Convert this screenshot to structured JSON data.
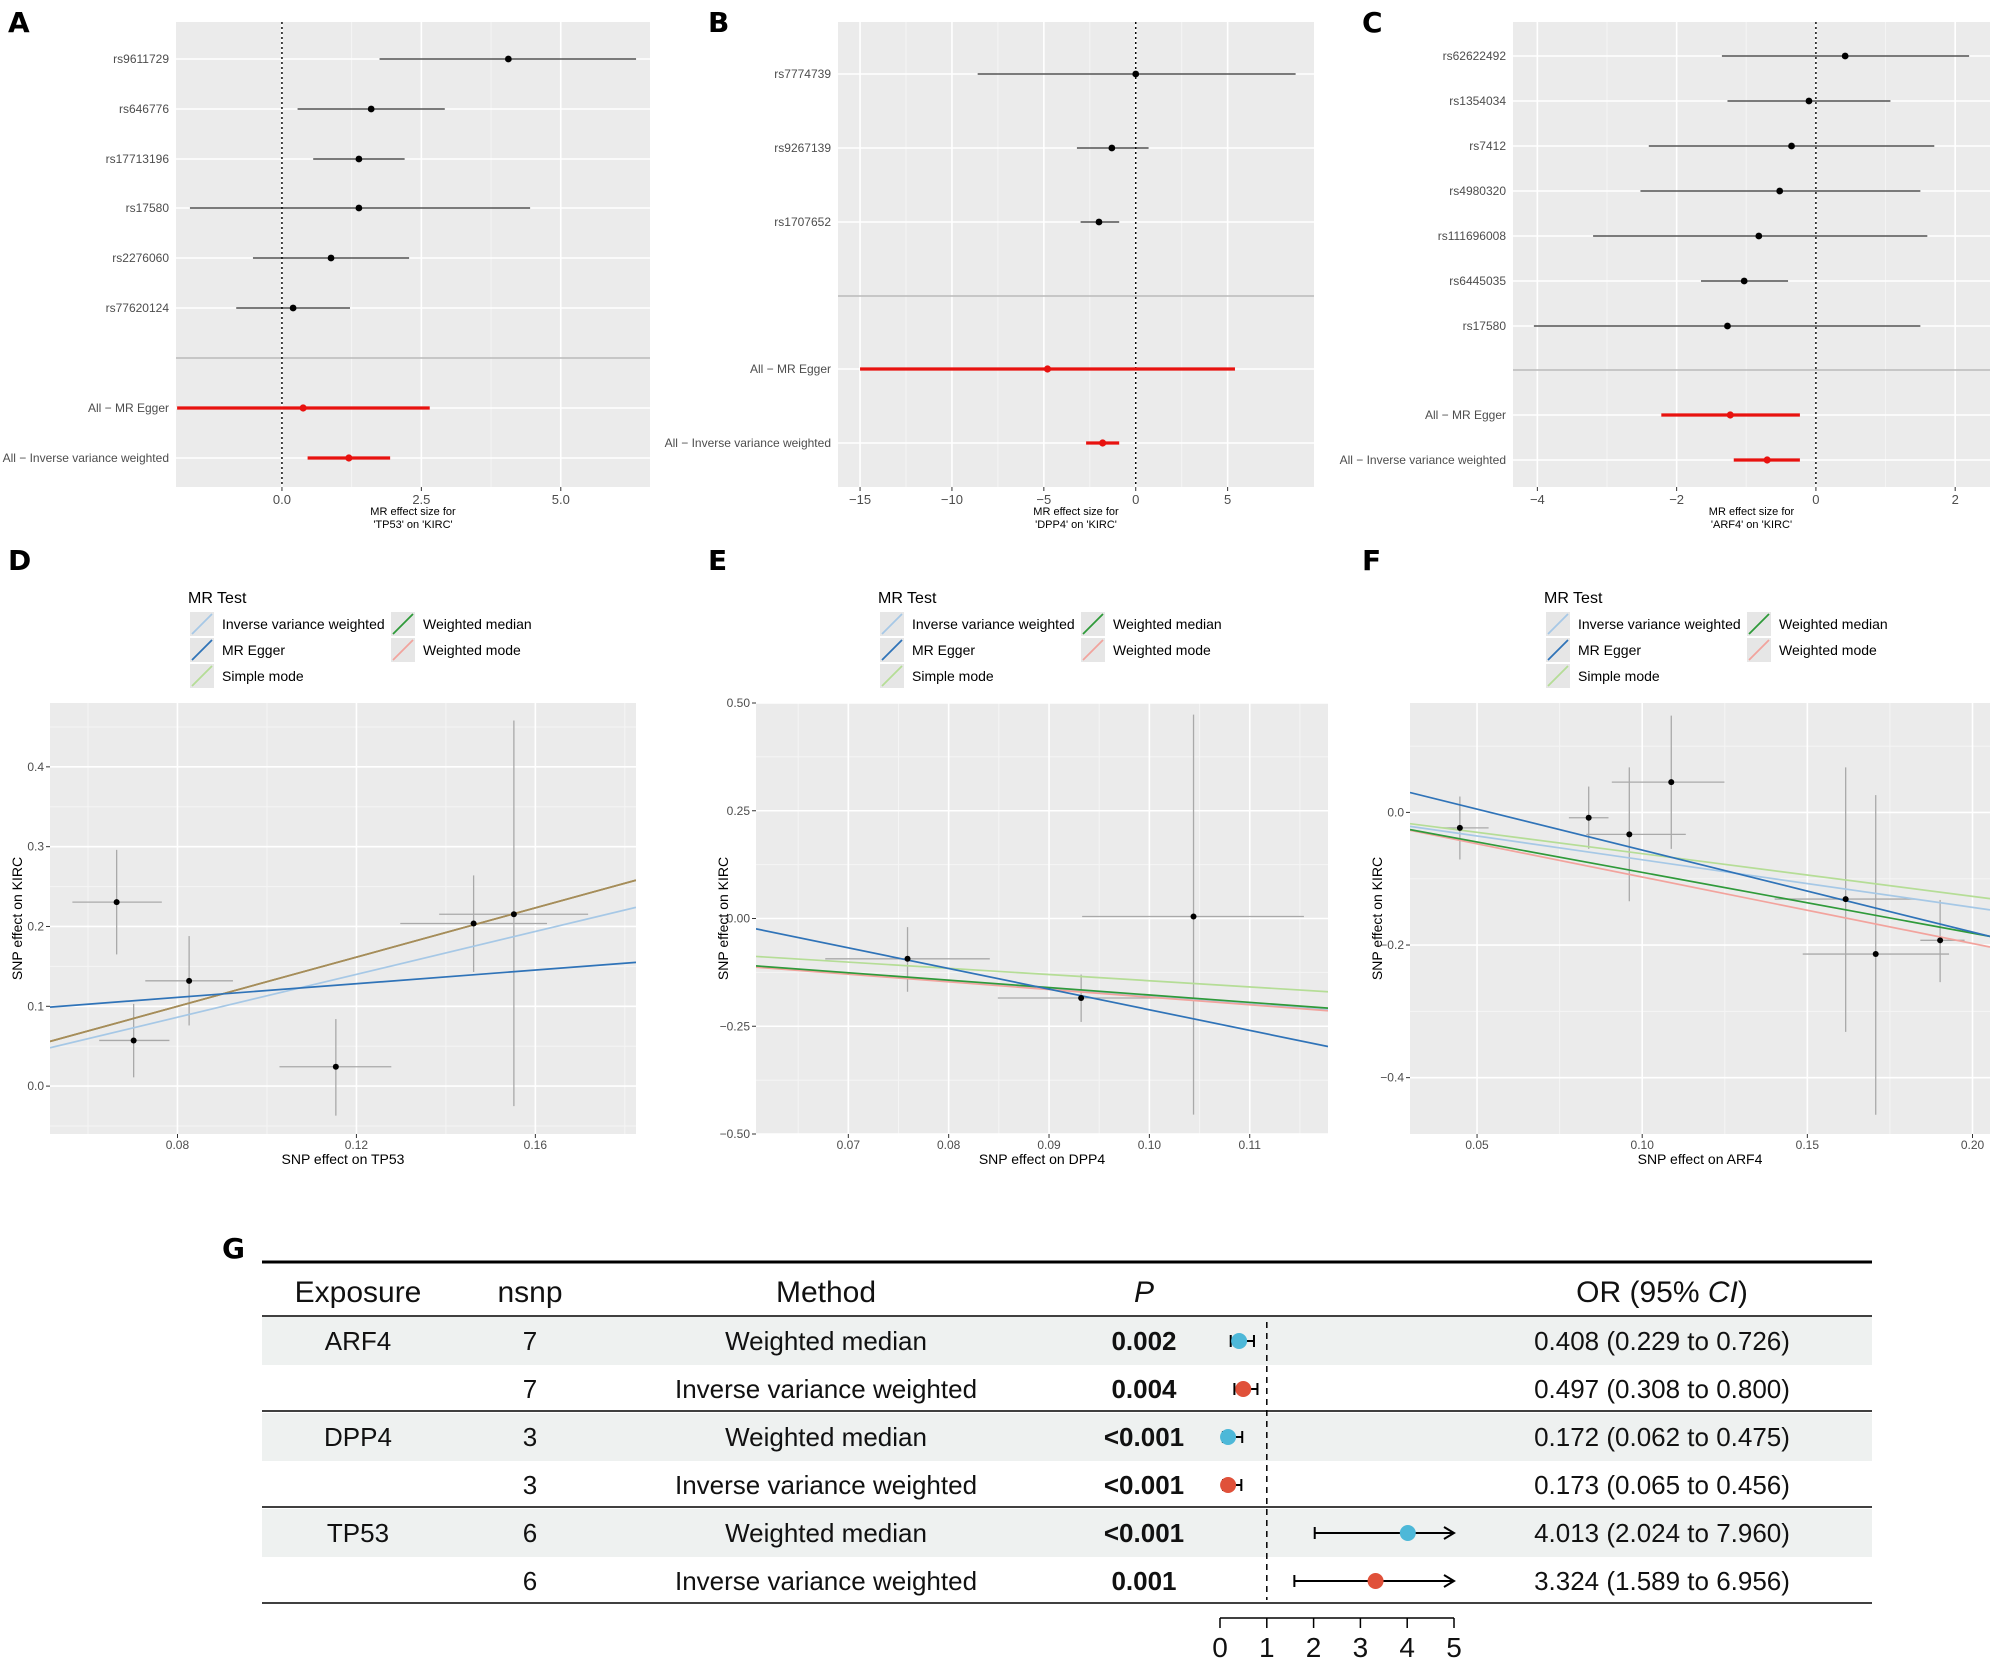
{
  "panel_labels": {
    "A": "A",
    "B": "B",
    "C": "C",
    "D": "D",
    "E": "E",
    "F": "F",
    "G": "G"
  },
  "chart_data": [
    {
      "id": "A",
      "type": "forest",
      "xlabel_lines": [
        "MR effect size for",
        "'TP53' on 'KIRC'"
      ],
      "xlim": [
        -1.9,
        6.6
      ],
      "xticks": [
        0,
        2.5,
        5
      ],
      "xtick_labels": [
        "0.0",
        "2.5",
        "5.0"
      ],
      "separator_after": 6,
      "rows": [
        {
          "label": "rs9611729",
          "est": 4.06,
          "lo": 1.75,
          "hi": 6.35,
          "summary": false
        },
        {
          "label": "rs646776",
          "est": 1.6,
          "lo": 0.28,
          "hi": 2.92,
          "summary": false
        },
        {
          "label": "rs17713196",
          "est": 1.38,
          "lo": 0.56,
          "hi": 2.2,
          "summary": false
        },
        {
          "label": "rs17580",
          "est": 1.38,
          "lo": -1.65,
          "hi": 4.45,
          "summary": false
        },
        {
          "label": "rs2276060",
          "est": 0.88,
          "lo": -0.52,
          "hi": 2.28,
          "summary": false
        },
        {
          "label": "rs77620124",
          "est": 0.2,
          "lo": -0.82,
          "hi": 1.22,
          "summary": false
        },
        {
          "label": "All − MR Egger",
          "est": 0.38,
          "lo": -1.88,
          "hi": 2.65,
          "summary": true
        },
        {
          "label": "All − Inverse variance weighted",
          "est": 1.2,
          "lo": 0.46,
          "hi": 1.94,
          "summary": true
        }
      ]
    },
    {
      "id": "B",
      "type": "forest",
      "xlabel_lines": [
        "MR effect size for",
        "'DPP4' on 'KIRC'"
      ],
      "xlim": [
        -16.2,
        9.7
      ],
      "xticks": [
        -15,
        -10,
        -5,
        0,
        5
      ],
      "xtick_labels": [
        "−15",
        "−10",
        "−5",
        "0",
        "5"
      ],
      "separator_after": 3,
      "rows": [
        {
          "label": "rs7774739",
          "est": 0.0,
          "lo": -8.6,
          "hi": 8.7,
          "summary": false
        },
        {
          "label": "rs9267139",
          "est": -1.3,
          "lo": -3.2,
          "hi": 0.7,
          "summary": false
        },
        {
          "label": "rs1707652",
          "est": -2.0,
          "lo": -3.0,
          "hi": -0.9,
          "summary": false
        },
        {
          "label": "All − MR Egger",
          "est": -4.8,
          "lo": -15.0,
          "hi": 5.4,
          "summary": true
        },
        {
          "label": "All − Inverse variance weighted",
          "est": -1.8,
          "lo": -2.7,
          "hi": -0.9,
          "summary": true
        }
      ]
    },
    {
      "id": "C",
      "type": "forest",
      "xlabel_lines": [
        "MR effect size for",
        "'ARF4' on 'KIRC'"
      ],
      "xlim": [
        -4.35,
        2.5
      ],
      "xticks": [
        -4,
        -2,
        0,
        2
      ],
      "xtick_labels": [
        "−4",
        "−2",
        "0",
        "2"
      ],
      "separator_after": 7,
      "rows": [
        {
          "label": "rs62622492",
          "est": 0.42,
          "lo": -1.35,
          "hi": 2.2,
          "summary": false
        },
        {
          "label": "rs1354034",
          "est": -0.1,
          "lo": -1.27,
          "hi": 1.07,
          "summary": false
        },
        {
          "label": "rs7412",
          "est": -0.35,
          "lo": -2.4,
          "hi": 1.7,
          "summary": false
        },
        {
          "label": "rs4980320",
          "est": -0.52,
          "lo": -2.52,
          "hi": 1.5,
          "summary": false
        },
        {
          "label": "rs111696008",
          "est": -0.82,
          "lo": -3.2,
          "hi": 1.6,
          "summary": false
        },
        {
          "label": "rs6445035",
          "est": -1.03,
          "lo": -1.65,
          "hi": -0.4,
          "summary": false
        },
        {
          "label": "rs17580",
          "est": -1.27,
          "lo": -4.05,
          "hi": 1.5,
          "summary": false
        },
        {
          "label": "All − MR Egger",
          "est": -1.23,
          "lo": -2.22,
          "hi": -0.23,
          "summary": true
        },
        {
          "label": "All − Inverse variance weighted",
          "est": -0.7,
          "lo": -1.18,
          "hi": -0.23,
          "summary": true
        }
      ]
    },
    {
      "id": "D",
      "type": "scatter",
      "xlabel": "SNP effect on TP53",
      "ylabel": "SNP effect on KIRC",
      "xlim": [
        0.0515,
        0.1825
      ],
      "ylim": [
        -0.06,
        0.48
      ],
      "xticks": [
        0.08,
        0.12,
        0.16
      ],
      "xtick_labels": [
        "0.08",
        "0.12",
        "0.16"
      ],
      "yticks": [
        0,
        0.1,
        0.2,
        0.3,
        0.4
      ],
      "ytick_labels": [
        "0.0",
        "0.1",
        "0.2",
        "0.3",
        "0.4"
      ],
      "points": [
        {
          "x": 0.0664,
          "y": 0.2305,
          "xlo": 0.0565,
          "xhi": 0.0765,
          "ylo": 0.165,
          "yhi": 0.296
        },
        {
          "x": 0.0702,
          "y": 0.0572,
          "xlo": 0.0625,
          "xhi": 0.0782,
          "ylo": 0.011,
          "yhi": 0.103
        },
        {
          "x": 0.0826,
          "y": 0.1319,
          "xlo": 0.0728,
          "xhi": 0.0924,
          "ylo": 0.076,
          "yhi": 0.188
        },
        {
          "x": 0.1154,
          "y": 0.0243,
          "xlo": 0.1028,
          "xhi": 0.1278,
          "ylo": -0.037,
          "yhi": 0.084
        },
        {
          "x": 0.1462,
          "y": 0.2037,
          "xlo": 0.1298,
          "xhi": 0.1626,
          "ylo": 0.143,
          "yhi": 0.264
        },
        {
          "x": 0.1552,
          "y": 0.2153,
          "xlo": 0.1385,
          "xhi": 0.1718,
          "ylo": -0.025,
          "yhi": 0.458
        }
      ],
      "lines": [
        {
          "method": "Inverse variance weighted",
          "x0": 0.0515,
          "y0": 0.048,
          "x1": 0.1825,
          "y1": 0.224
        },
        {
          "method": "MR Egger",
          "x0": 0.0515,
          "y0": 0.099,
          "x1": 0.1825,
          "y1": 0.155
        },
        {
          "method": "Simple mode",
          "x0": 0.0515,
          "y0": 0.056,
          "x1": 0.1825,
          "y1": 0.258
        },
        {
          "method": "Weighted median",
          "x0": 0.0515,
          "y0": 0.056,
          "x1": 0.1825,
          "y1": 0.258
        },
        {
          "method": "Weighted mode",
          "x0": 0.0515,
          "y0": 0.056,
          "x1": 0.1825,
          "y1": 0.258
        }
      ]
    },
    {
      "id": "E",
      "type": "scatter",
      "xlabel": "SNP effect on DPP4",
      "ylabel": "SNP effect on KIRC",
      "xlim": [
        0.0608,
        0.1178
      ],
      "ylim": [
        -0.5,
        0.5
      ],
      "xticks": [
        0.07,
        0.08,
        0.09,
        0.1,
        0.11
      ],
      "xtick_labels": [
        "0.07",
        "0.08",
        "0.09",
        "0.10",
        "0.11"
      ],
      "yticks": [
        -0.5,
        -0.25,
        0,
        0.25,
        0.5
      ],
      "ytick_labels": [
        "−0.50",
        "−0.25",
        "0.00",
        "0.25",
        "0.50"
      ],
      "points": [
        {
          "x": 0.0759,
          "y": -0.0935,
          "xlo": 0.0677,
          "xhi": 0.0841,
          "ylo": -0.17,
          "yhi": -0.02
        },
        {
          "x": 0.0932,
          "y": -0.1845,
          "xlo": 0.0849,
          "xhi": 0.1016,
          "ylo": -0.24,
          "yhi": -0.13
        },
        {
          "x": 0.1044,
          "y": 0.0047,
          "xlo": 0.0933,
          "xhi": 0.1154,
          "ylo": -0.455,
          "yhi": 0.473
        }
      ],
      "lines": [
        {
          "method": "Inverse variance weighted",
          "x0": 0.0608,
          "y0": -0.112,
          "x1": 0.1178,
          "y1": -0.212
        },
        {
          "method": "MR Egger",
          "x0": 0.0608,
          "y0": -0.024,
          "x1": 0.1178,
          "y1": -0.297
        },
        {
          "method": "Simple mode",
          "x0": 0.0608,
          "y0": -0.088,
          "x1": 0.1178,
          "y1": -0.17
        },
        {
          "method": "Weighted median",
          "x0": 0.0608,
          "y0": -0.11,
          "x1": 0.1178,
          "y1": -0.208
        },
        {
          "method": "Weighted mode",
          "x0": 0.0608,
          "y0": -0.113,
          "x1": 0.1178,
          "y1": -0.214
        }
      ]
    },
    {
      "id": "F",
      "type": "scatter",
      "xlabel": "SNP effect on ARF4",
      "ylabel": "SNP effect on KIRC",
      "xlim": [
        0.0297,
        0.2053
      ],
      "ylim": [
        -0.485,
        0.165
      ],
      "xticks": [
        0.05,
        0.1,
        0.15,
        0.2
      ],
      "xtick_labels": [
        "0.05",
        "0.10",
        "0.15",
        "0.20"
      ],
      "yticks": [
        -0.4,
        -0.2,
        0
      ],
      "ytick_labels": [
        "−0.4",
        "−0.2",
        "0.0"
      ],
      "points": [
        {
          "x": 0.0448,
          "y": -0.0233,
          "xlo": 0.0395,
          "xhi": 0.0535,
          "ylo": -0.071,
          "yhi": 0.024
        },
        {
          "x": 0.0838,
          "y": -0.0081,
          "xlo": 0.0778,
          "xhi": 0.0898,
          "ylo": -0.055,
          "yhi": 0.039
        },
        {
          "x": 0.0961,
          "y": -0.0331,
          "xlo": 0.0831,
          "xhi": 0.1132,
          "ylo": -0.134,
          "yhi": 0.068
        },
        {
          "x": 0.1088,
          "y": 0.0457,
          "xlo": 0.0908,
          "xhi": 0.1249,
          "ylo": -0.055,
          "yhi": 0.146
        },
        {
          "x": 0.1616,
          "y": -0.1307,
          "xlo": 0.1401,
          "xhi": 0.1825,
          "ylo": -0.331,
          "yhi": 0.068
        },
        {
          "x": 0.1707,
          "y": -0.2136,
          "xlo": 0.1486,
          "xhi": 0.1929,
          "ylo": -0.456,
          "yhi": 0.026
        },
        {
          "x": 0.1902,
          "y": -0.1929,
          "xlo": 0.1842,
          "xhi": 0.1976,
          "ylo": -0.256,
          "yhi": -0.132
        }
      ],
      "lines": [
        {
          "method": "Inverse variance weighted",
          "x0": 0.0297,
          "y0": -0.021,
          "x1": 0.2053,
          "y1": -0.147
        },
        {
          "method": "MR Egger",
          "x0": 0.0297,
          "y0": 0.03,
          "x1": 0.2053,
          "y1": -0.187
        },
        {
          "method": "Simple mode",
          "x0": 0.0297,
          "y0": -0.017,
          "x1": 0.2053,
          "y1": -0.13
        },
        {
          "method": "Weighted median",
          "x0": 0.0297,
          "y0": -0.026,
          "x1": 0.2053,
          "y1": -0.187
        },
        {
          "method": "Weighted mode",
          "x0": 0.0297,
          "y0": -0.027,
          "x1": 0.2053,
          "y1": -0.203
        }
      ]
    },
    {
      "id": "G",
      "type": "table",
      "columns": {
        "exposure": "Exposure",
        "nsnp": "nsnp",
        "method": "Method",
        "p": "P",
        "or": "OR (95% ",
        "ci": "CI",
        ")": ")"
      },
      "xticks": [
        0,
        1,
        2,
        3,
        4,
        5
      ],
      "ref_line": 1,
      "rows": [
        {
          "exposure": "ARF4",
          "nsnp": "7",
          "method": "Weighted median",
          "p": "0.002",
          "or_text": "0.408 (0.229 to 0.726)",
          "est": 0.408,
          "lo": 0.229,
          "hi": 0.726,
          "shade": true,
          "group_start": true,
          "color": "#4db8d8"
        },
        {
          "exposure": "",
          "nsnp": "7",
          "method": "Inverse variance weighted",
          "p": "0.004",
          "or_text": "0.497 (0.308 to 0.800)",
          "est": 0.497,
          "lo": 0.308,
          "hi": 0.8,
          "shade": false,
          "group_start": false,
          "color": "#e0513a"
        },
        {
          "exposure": "DPP4",
          "nsnp": "3",
          "method": "Weighted median",
          "p": "<0.001",
          "or_text": "0.172 (0.062 to 0.475)",
          "est": 0.172,
          "lo": 0.062,
          "hi": 0.475,
          "shade": true,
          "group_start": true,
          "color": "#4db8d8"
        },
        {
          "exposure": "",
          "nsnp": "3",
          "method": "Inverse variance weighted",
          "p": "<0.001",
          "or_text": "0.173 (0.065 to 0.456)",
          "est": 0.173,
          "lo": 0.065,
          "hi": 0.456,
          "shade": false,
          "group_start": false,
          "color": "#e0513a"
        },
        {
          "exposure": "TP53",
          "nsnp": "6",
          "method": "Weighted median",
          "p": "<0.001",
          "or_text": "4.013 (2.024 to 7.960)",
          "est": 4.013,
          "lo": 2.024,
          "hi": 7.96,
          "shade": true,
          "group_start": true,
          "color": "#4db8d8"
        },
        {
          "exposure": "",
          "nsnp": "6",
          "method": "Inverse variance weighted",
          "p": "0.001",
          "or_text": "3.324 (1.589 to 6.956)",
          "est": 3.324,
          "lo": 1.589,
          "hi": 6.956,
          "shade": false,
          "group_start": false,
          "color": "#e0513a"
        }
      ]
    }
  ],
  "legend": {
    "title": "MR Test",
    "items": [
      {
        "label": "Inverse variance weighted",
        "color": "#a6c8e6"
      },
      {
        "label": "MR Egger",
        "color": "#2f73b8"
      },
      {
        "label": "Simple mode",
        "color": "#b5dd96"
      },
      {
        "label": "Weighted median",
        "color": "#2f9a3a"
      },
      {
        "label": "Weighted mode",
        "color": "#f2a39d"
      }
    ]
  },
  "colors": {
    "panel_bg": "#ebebeb",
    "grid": "#ffffff",
    "summary": "#e8120f",
    "point": "#000000",
    "table_shade": "#eef1f0"
  }
}
